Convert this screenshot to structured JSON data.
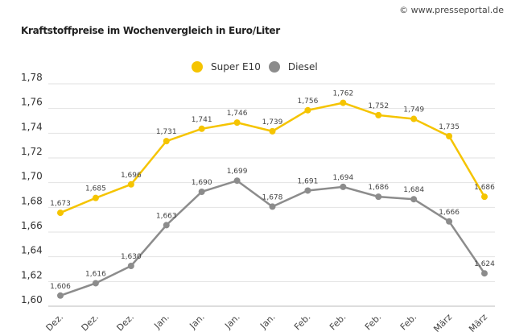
{
  "chart_data": {
    "type": "line",
    "title": "Kraftstoffpreise im Wochenvergleich in Euro/Liter",
    "categories": [
      "Dez.",
      "Dez.",
      "Dez.",
      "Jan.",
      "Jan.",
      "Jan.",
      "Jan.",
      "Feb.",
      "Feb.",
      "Feb.",
      "Feb.",
      "März",
      "März"
    ],
    "series": [
      {
        "name": "Super E10",
        "color": "#f5c400",
        "values": [
          1.673,
          1.685,
          1.696,
          1.731,
          1.741,
          1.746,
          1.739,
          1.756,
          1.762,
          1.752,
          1.749,
          1.735,
          1.686
        ],
        "labels": [
          "1,673",
          "1,685",
          "1,696",
          "1,731",
          "1,741",
          "1,746",
          "1,739",
          "1,756",
          "1,762",
          "1,752",
          "1,749",
          "1,735",
          "1,686"
        ]
      },
      {
        "name": "Diesel",
        "color": "#8c8c8c",
        "values": [
          1.606,
          1.616,
          1.63,
          1.663,
          1.69,
          1.699,
          1.678,
          1.691,
          1.694,
          1.686,
          1.684,
          1.666,
          1.624
        ],
        "labels": [
          "1,606",
          "1,616",
          "1,630",
          "1,663",
          "1,690",
          "1,699",
          "1,678",
          "1,691",
          "1,694",
          "1,686",
          "1,684",
          "1,666",
          "1,624"
        ]
      }
    ],
    "yticks": [
      "1,60",
      "1,62",
      "1,64",
      "1,66",
      "1,68",
      "1,70",
      "1,72",
      "1,74",
      "1,76",
      "1,78"
    ],
    "ylim": [
      1.6,
      1.78
    ],
    "grid": true,
    "legend": "top-center"
  },
  "credit": "© www.presseportal.de"
}
